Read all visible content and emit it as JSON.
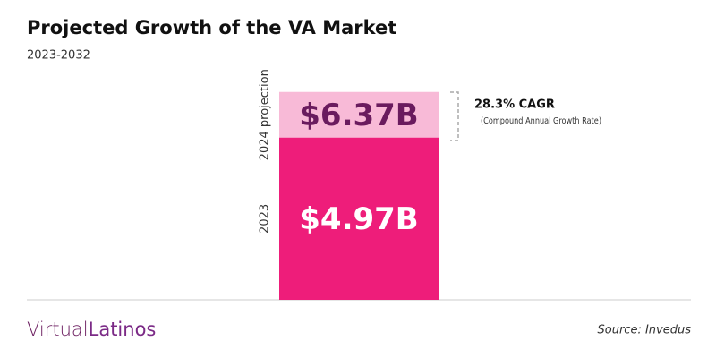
{
  "chart_data": {
    "type": "bar",
    "title": "Projected Growth of the VA Market",
    "subtitle": "2023-2032",
    "categories": [
      "2023",
      "2024 projection"
    ],
    "values": [
      4.97,
      6.37
    ],
    "value_labels": [
      "$4.97B",
      "$6.37B"
    ],
    "colors": [
      "#ee1d7a",
      "#f8bad7"
    ],
    "label_colors": [
      "#ffffff",
      "#6a1b5e"
    ],
    "ylim": [
      0,
      6.5
    ],
    "annotation": {
      "title": "28.3% CAGR",
      "text": "(Compound Annual Growth Rate)"
    }
  },
  "footer": {
    "brand": [
      "Virtual",
      "Latinos"
    ],
    "source": "Source: Invedus"
  }
}
